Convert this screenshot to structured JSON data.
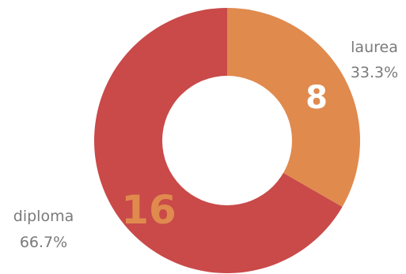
{
  "chart_data": {
    "type": "pie",
    "style": "donut",
    "slices": [
      {
        "label": "laurea",
        "value": 8,
        "value_label": "8",
        "percent_label": "33.3%",
        "color": "#e08a4e",
        "value_color": "#ffffff"
      },
      {
        "label": "diploma",
        "value": 16,
        "value_label": "16",
        "percent_label": "66.7%",
        "color": "#c94a49",
        "value_color": "#e08a4e"
      }
    ]
  }
}
